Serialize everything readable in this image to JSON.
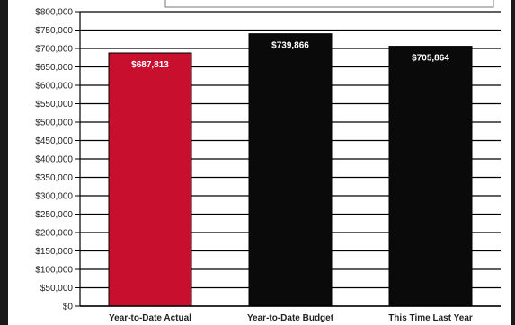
{
  "chart_data": {
    "type": "bar",
    "title": "",
    "xlabel": "",
    "ylabel": "",
    "categories": [
      "Year-to-Date Actual",
      "Year-to-Date Budget",
      "This Time Last Year"
    ],
    "values": [
      687813,
      739866,
      705864
    ],
    "data_labels": [
      "$687,813",
      "$739,866",
      "$705,864"
    ],
    "bar_colors": [
      "#c8102e",
      "#0a0a0a",
      "#0a0a0a"
    ],
    "ylim": [
      0,
      800000
    ],
    "y_ticks": [
      0,
      50000,
      100000,
      150000,
      200000,
      250000,
      300000,
      350000,
      400000,
      450000,
      500000,
      550000,
      600000,
      650000,
      700000,
      750000,
      800000
    ],
    "y_tick_labels": [
      "$0",
      "$50,000",
      "$100,000",
      "$150,000",
      "$200,000",
      "$250,000",
      "$300,000",
      "$350,000",
      "$400,000",
      "$450,000",
      "$500,000",
      "$550,000",
      "$600,000",
      "$650,000",
      "$700,000",
      "$750,000",
      "$800,000"
    ],
    "grid": true,
    "legend": "none"
  }
}
